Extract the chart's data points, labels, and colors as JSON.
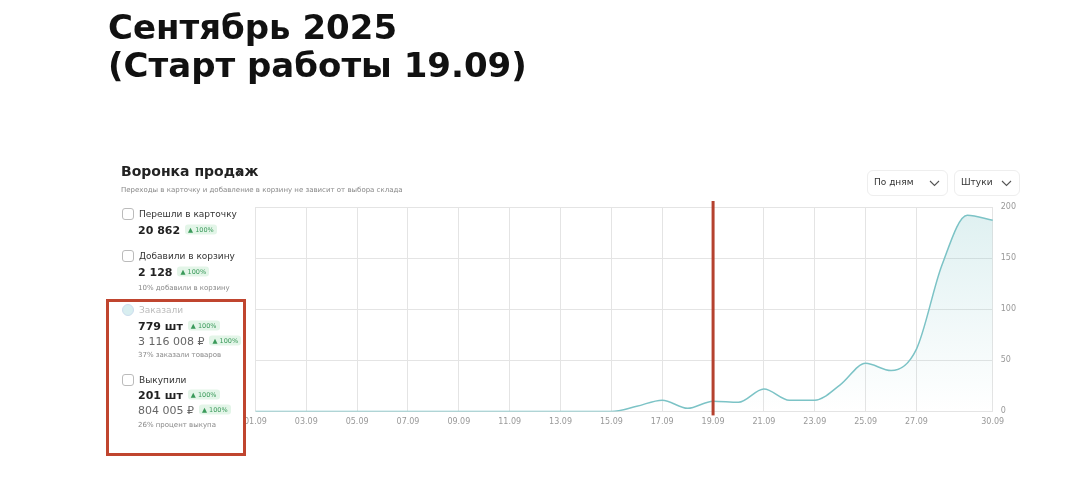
{
  "chart_data": {
    "type": "area",
    "title": "Сентябрь 2025\n(Старт работы 19.09)",
    "subtitle": "Воронка продаж",
    "categories": [
      "01.09",
      null,
      "03.09",
      null,
      "05.09",
      null,
      "07.09",
      null,
      "09.09",
      null,
      "11.09",
      null,
      "13.09",
      null,
      "15.09",
      null,
      "17.09",
      null,
      "19.09",
      null,
      "21.09",
      null,
      "23.09",
      null,
      "25.09",
      null,
      "27.09",
      null,
      null,
      "30.09"
    ],
    "series": [
      {
        "color": "#7cc3c6",
        "values": [
          0,
          0,
          0,
          0,
          0,
          0,
          0,
          0,
          0,
          0,
          0,
          0,
          0,
          0,
          0,
          5,
          11,
          3,
          10,
          9,
          22,
          11,
          11,
          26,
          47,
          40,
          61,
          143,
          192,
          187
        ]
      }
    ],
    "ylim": [
      0,
      200
    ],
    "yticks": [
      0,
      50,
      100,
      150,
      200
    ],
    "grid": true,
    "legend": false,
    "marker": "none",
    "ref_lines": [
      {
        "axis": "x",
        "value": "19.09",
        "color": "#b5412f"
      }
    ],
    "annotations": [
      "Переходы в карточку и добавление в корзину не зависит от выбора склада",
      "Перешли в карточку",
      "20 862",
      "▲ 100%",
      "Добавили в корзину",
      "2 128",
      "▲ 100%",
      "10% добавили в корзину",
      "Заказали",
      "779 шт",
      "▲ 100%",
      "3 116 008 ₽",
      "▲ 100%",
      "37% заказали товаров",
      "Выкупили",
      "201 шт",
      "▲ 100%",
      "804 005 ₽",
      "▲ 100%",
      "26% процент выкупа",
      "По дням",
      "Штуки"
    ]
  }
}
